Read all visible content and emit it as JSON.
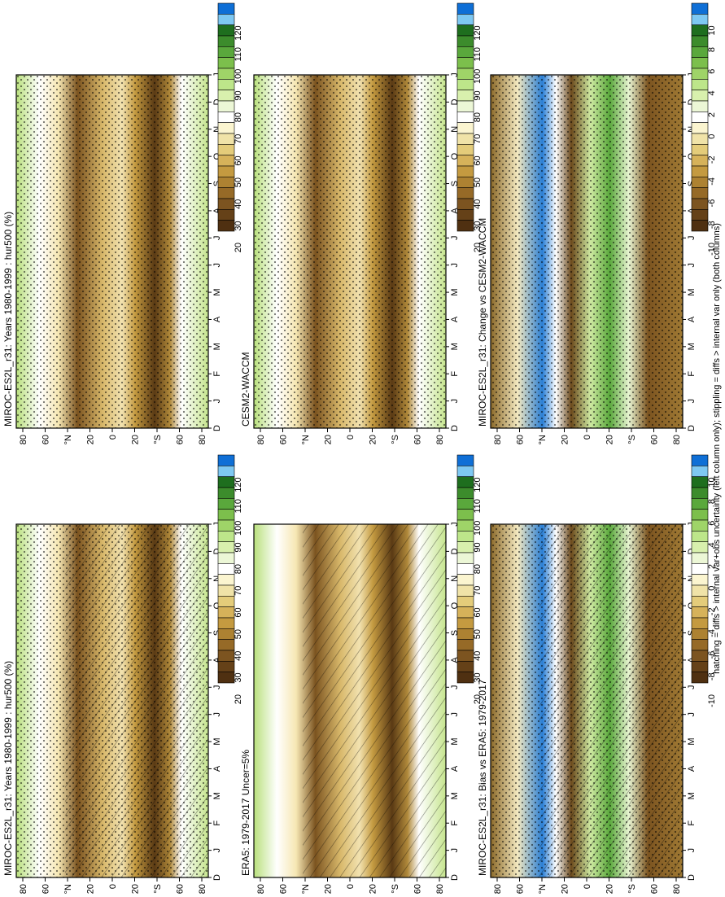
{
  "footer": "hatching = diffs > internal var+obs uncertainty (left column only); stippling = diffs > internal var only (both columns)",
  "months": [
    "D",
    "J",
    "F",
    "M",
    "A",
    "M",
    "J",
    "J",
    "A",
    "S",
    "O",
    "N",
    "D",
    "J"
  ],
  "lat_ticks": [
    "80",
    "60",
    "°N",
    "20",
    "0",
    "20",
    "°S",
    "60",
    "80"
  ],
  "abs_colorbar": {
    "labels": [
      "120",
      "110",
      "100",
      "90",
      "80",
      "70",
      "60",
      "50",
      "40",
      "30",
      "20"
    ],
    "colors": [
      "#0f6fd6",
      "#7ec8f2",
      "#1e6e1e",
      "#3c8c2c",
      "#5aa83c",
      "#7cbf4c",
      "#9fd468",
      "#bde68a",
      "#d8f0ad",
      "#ecf7d6",
      "#ffffff",
      "#fbf5d0",
      "#f0e3a8",
      "#e4cc7a",
      "#d6b25a",
      "#c49a40",
      "#ad8232",
      "#966a27",
      "#7c5420",
      "#654118",
      "#4f3011"
    ]
  },
  "diff_colorbar": {
    "labels": [
      "10",
      "8",
      "6",
      "4",
      "2",
      "0",
      "-2",
      "-4",
      "-6",
      "-8",
      "-10"
    ],
    "colors": [
      "#0f6fd6",
      "#7ec8f2",
      "#1e6e1e",
      "#3c8c2c",
      "#5aa83c",
      "#7cbf4c",
      "#9fd468",
      "#bde68a",
      "#d8f0ad",
      "#ecf7d6",
      "#ffffff",
      "#fbf5d0",
      "#f0e3a8",
      "#e4cc7a",
      "#d6b25a",
      "#c49a40",
      "#ad8232",
      "#966a27",
      "#7c5420",
      "#654118",
      "#4f3011"
    ]
  },
  "chart_data": [
    {
      "type": "heatmap",
      "title": "MIROC-ES2L_r31: Years 1980-1999 : hur500 (%)",
      "x": "month",
      "y": "latitude",
      "colorbar": "abs",
      "hatching": true,
      "stippling": true
    },
    {
      "type": "heatmap",
      "title": "MIROC-ES2L_r31: Years 1980-1999 : hur500 (%)",
      "x": "month",
      "y": "latitude",
      "colorbar": "abs",
      "hatching": false,
      "stippling": true
    },
    {
      "type": "heatmap",
      "title": "ERA5: 1979-2017 Uncer=5%",
      "x": "month",
      "y": "latitude",
      "colorbar": "abs",
      "hatching": true,
      "stippling": false
    },
    {
      "type": "heatmap",
      "title": "CESM2-WACCM",
      "x": "month",
      "y": "latitude",
      "colorbar": "abs",
      "hatching": false,
      "stippling": true
    },
    {
      "type": "heatmap",
      "title": "MIROC-ES2L_r31: Bias vs ERA5: 1979-2017",
      "x": "month",
      "y": "latitude",
      "colorbar": "diff",
      "hatching": true,
      "stippling": true
    },
    {
      "type": "heatmap",
      "title": "MIROC-ES2L_r31: Change vs CESM2-WACCM",
      "x": "month",
      "y": "latitude",
      "colorbar": "diff",
      "hatching": false,
      "stippling": true
    }
  ]
}
